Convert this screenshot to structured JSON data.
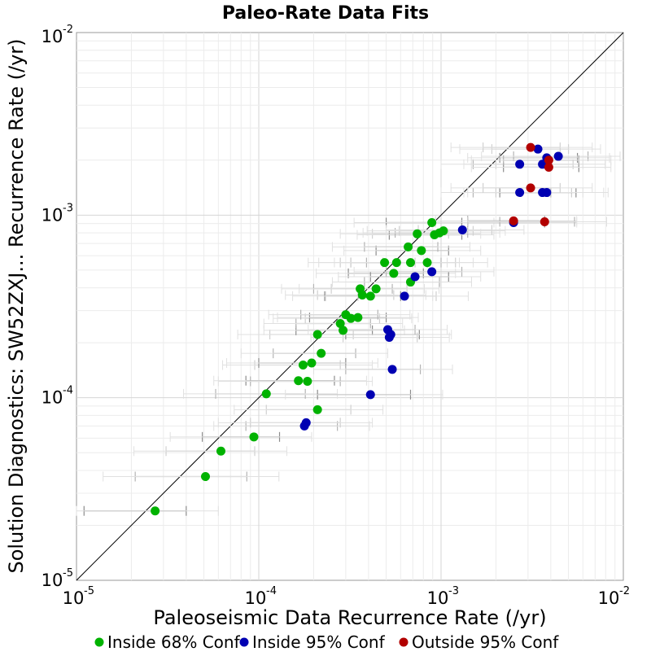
{
  "chart_data": {
    "type": "scatter",
    "title": "Paleo-Rate Data Fits",
    "xlabel": "Paleoseismic Data Recurrence Rate (/yr)",
    "ylabel": "Solution Diagnostics: SW52ZXJ... Recurrence Rate (/yr)",
    "x_scale": "log",
    "y_scale": "log",
    "xlim": [
      1e-05,
      0.01
    ],
    "ylim": [
      1e-05,
      0.01
    ],
    "grid": true,
    "reference_line": "y = x",
    "x_ticks": [
      {
        "base": "10",
        "exp": "-5"
      },
      {
        "base": "10",
        "exp": "-4"
      },
      {
        "base": "10",
        "exp": "-3"
      },
      {
        "base": "10",
        "exp": "-2"
      }
    ],
    "y_ticks": [
      {
        "base": "10",
        "exp": "-5"
      },
      {
        "base": "10",
        "exp": "-4"
      },
      {
        "base": "10",
        "exp": "-3"
      },
      {
        "base": "10",
        "exp": "-2"
      }
    ],
    "legend_position": "bottom",
    "series": [
      {
        "name": "Inside 68% Conf",
        "color": "#00b200",
        "points": [
          {
            "x": 2.7e-05,
            "y": 2.4e-05,
            "xlo": 1.1e-05,
            "xhi": 4e-05
          },
          {
            "x": 5.1e-05,
            "y": 3.7e-05,
            "xlo": 2.1e-05,
            "xhi": 8.6e-05
          },
          {
            "x": 6.2e-05,
            "y": 5.1e-05,
            "xlo": 3.1e-05,
            "xhi": 9.5e-05
          },
          {
            "x": 9.4e-05,
            "y": 6.1e-05,
            "xlo": 4.9e-05,
            "xhi": 0.00013
          },
          {
            "x": 0.00011,
            "y": 0.000105,
            "xlo": 5.8e-05,
            "xhi": 0.00018
          },
          {
            "x": 0.00021,
            "y": 8.6e-05,
            "xlo": 0.00011,
            "xhi": 0.00032
          },
          {
            "x": 0.000165,
            "y": 0.000124,
            "xlo": 8.5e-05,
            "xhi": 0.00026
          },
          {
            "x": 0.000185,
            "y": 0.000123,
            "xlo": 9e-05,
            "xhi": 0.00028
          },
          {
            "x": 0.000175,
            "y": 0.000151,
            "xlo": 9.5e-05,
            "xhi": 0.00028
          },
          {
            "x": 0.000195,
            "y": 0.000155,
            "xlo": 0.0001,
            "xhi": 0.0003
          },
          {
            "x": 0.00022,
            "y": 0.000175,
            "xlo": 0.00012,
            "xhi": 0.00034
          },
          {
            "x": 0.00021,
            "y": 0.000222,
            "xlo": 0.000115,
            "xhi": 0.00033
          },
          {
            "x": 0.00029,
            "y": 0.000234,
            "xlo": 0.00016,
            "xhi": 0.00042
          },
          {
            "x": 0.00028,
            "y": 0.000255,
            "xlo": 0.00016,
            "xhi": 0.00041
          },
          {
            "x": 0.00032,
            "y": 0.000272,
            "xlo": 0.00018,
            "xhi": 0.00046
          },
          {
            "x": 0.00035,
            "y": 0.000275,
            "xlo": 0.00019,
            "xhi": 0.0005
          },
          {
            "x": 0.0003,
            "y": 0.000285,
            "xlo": 0.00017,
            "xhi": 0.00045
          },
          {
            "x": 0.00037,
            "y": 0.000365,
            "xlo": 0.00021,
            "xhi": 0.00055
          },
          {
            "x": 0.00041,
            "y": 0.00036,
            "xlo": 0.00023,
            "xhi": 0.0006
          },
          {
            "x": 0.00036,
            "y": 0.000395,
            "xlo": 0.0002,
            "xhi": 0.00054
          },
          {
            "x": 0.00044,
            "y": 0.000395,
            "xlo": 0.00025,
            "xhi": 0.00065
          },
          {
            "x": 0.00055,
            "y": 0.00048,
            "xlo": 0.00031,
            "xhi": 0.0008
          },
          {
            "x": 0.00068,
            "y": 0.00043,
            "xlo": 0.00038,
            "xhi": 0.00098
          },
          {
            "x": 0.00049,
            "y": 0.00055,
            "xlo": 0.00028,
            "xhi": 0.00072
          },
          {
            "x": 0.00057,
            "y": 0.00055,
            "xlo": 0.00032,
            "xhi": 0.00084
          },
          {
            "x": 0.00068,
            "y": 0.00055,
            "xlo": 0.00039,
            "xhi": 0.001
          },
          {
            "x": 0.00084,
            "y": 0.00055,
            "xlo": 0.00048,
            "xhi": 0.0012
          },
          {
            "x": 0.00078,
            "y": 0.00064,
            "xlo": 0.00044,
            "xhi": 0.0011
          },
          {
            "x": 0.00066,
            "y": 0.00067,
            "xlo": 0.00038,
            "xhi": 0.00096
          },
          {
            "x": 0.00074,
            "y": 0.00079,
            "xlo": 0.00042,
            "xhi": 0.0011
          },
          {
            "x": 0.00092,
            "y": 0.00078,
            "xlo": 0.00052,
            "xhi": 0.0013
          },
          {
            "x": 0.00098,
            "y": 0.0008,
            "xlo": 0.00056,
            "xhi": 0.0014
          },
          {
            "x": 0.00103,
            "y": 0.00082,
            "xlo": 0.00059,
            "xhi": 0.0015
          },
          {
            "x": 0.00089,
            "y": 0.00091,
            "xlo": 0.0005,
            "xhi": 0.0013
          }
        ]
      },
      {
        "name": "Inside 95% Conf",
        "color": "#0000b2",
        "points": [
          {
            "x": 0.000178,
            "y": 7e-05,
            "xlo": 8.5e-05,
            "xhi": 0.00027
          },
          {
            "x": 0.000182,
            "y": 7.3e-05,
            "xlo": 9e-05,
            "xhi": 0.00028
          },
          {
            "x": 0.00041,
            "y": 0.000104,
            "xlo": 0.00021,
            "xhi": 0.00068
          },
          {
            "x": 0.00054,
            "y": 0.000143,
            "xlo": 0.0003,
            "xhi": 0.00077
          },
          {
            "x": 0.00052,
            "y": 0.000214,
            "xlo": 0.00029,
            "xhi": 0.00074
          },
          {
            "x": 0.00053,
            "y": 0.000222,
            "xlo": 0.0003,
            "xhi": 0.00076
          },
          {
            "x": 0.00051,
            "y": 0.000236,
            "xlo": 0.00028,
            "xhi": 0.00072
          },
          {
            "x": 0.00063,
            "y": 0.00036,
            "xlo": 0.00035,
            "xhi": 0.00094
          },
          {
            "x": 0.00072,
            "y": 0.00046,
            "xlo": 0.00041,
            "xhi": 0.0011
          },
          {
            "x": 0.00089,
            "y": 0.00049,
            "xlo": 0.0005,
            "xhi": 0.0013
          },
          {
            "x": 0.00131,
            "y": 0.00083,
            "xlo": 0.00075,
            "xhi": 0.0019
          },
          {
            "x": 0.0025,
            "y": 0.00091,
            "xlo": 0.0014,
            "xhi": 0.0037
          },
          {
            "x": 0.0027,
            "y": 0.00133,
            "xlo": 0.0015,
            "xhi": 0.004
          },
          {
            "x": 0.0036,
            "y": 0.00133,
            "xlo": 0.002,
            "xhi": 0.0052
          },
          {
            "x": 0.0038,
            "y": 0.00133,
            "xlo": 0.0021,
            "xhi": 0.0055
          },
          {
            "x": 0.0027,
            "y": 0.0019,
            "xlo": 0.0015,
            "xhi": 0.004
          },
          {
            "x": 0.0036,
            "y": 0.0019,
            "xlo": 0.002,
            "xhi": 0.0053
          },
          {
            "x": 0.0038,
            "y": 0.00206,
            "xlo": 0.0021,
            "xhi": 0.0056
          },
          {
            "x": 0.0044,
            "y": 0.0021,
            "xlo": 0.0025,
            "xhi": 0.0064
          },
          {
            "x": 0.0034,
            "y": 0.0023,
            "xlo": 0.0019,
            "xhi": 0.005
          }
        ]
      },
      {
        "name": "Outside 95% Conf",
        "color": "#b20000",
        "points": [
          {
            "x": 0.0025,
            "y": 0.00093,
            "xlo": 0.0014,
            "xhi": 0.0037
          },
          {
            "x": 0.0037,
            "y": 0.00092,
            "xlo": 0.0021,
            "xhi": 0.0054
          },
          {
            "x": 0.0031,
            "y": 0.00141,
            "xlo": 0.0017,
            "xhi": 0.0045
          },
          {
            "x": 0.0039,
            "y": 0.00183,
            "xlo": 0.0022,
            "xhi": 0.0057
          },
          {
            "x": 0.0039,
            "y": 0.002,
            "xlo": 0.0022,
            "xhi": 0.0057
          },
          {
            "x": 0.0031,
            "y": 0.00235,
            "xlo": 0.0017,
            "xhi": 0.0045
          }
        ]
      }
    ]
  }
}
